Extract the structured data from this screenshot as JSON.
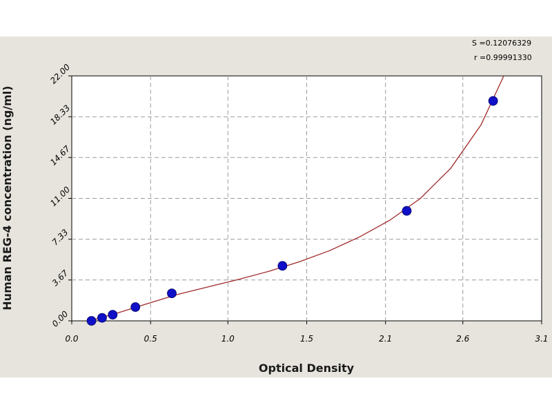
{
  "chart_data": {
    "type": "scatter",
    "title": "",
    "xlabel": "Optical Density",
    "ylabel": "Human REG-4 concentration (ng/ml)",
    "xlim": [
      0.0,
      3.1
    ],
    "ylim": [
      0.0,
      22.0
    ],
    "x_ticks": [
      "0.0",
      "0.5",
      "1.0",
      "1.5",
      "2.1",
      "2.6",
      "3.1"
    ],
    "x_tick_values": [
      0.0,
      0.52,
      1.03,
      1.55,
      2.07,
      2.58,
      3.1
    ],
    "y_ticks": [
      "0.00",
      "3.67",
      "7.33",
      "11.00",
      "14.67",
      "18.33",
      "22.00"
    ],
    "y_tick_values": [
      0.0,
      3.67,
      7.33,
      11.0,
      14.67,
      18.33,
      22.0
    ],
    "grid": true,
    "points": {
      "x": [
        0.13,
        0.2,
        0.27,
        0.42,
        0.66,
        1.39,
        2.21,
        2.78
      ],
      "y": [
        0.0,
        0.27,
        0.55,
        1.24,
        2.47,
        4.94,
        9.88,
        19.75
      ]
    },
    "fit_curve": {
      "x": [
        0.12,
        0.3,
        0.5,
        0.7,
        0.9,
        1.1,
        1.3,
        1.5,
        1.7,
        1.9,
        2.1,
        2.3,
        2.5,
        2.7,
        2.85
      ],
      "y": [
        0.0,
        0.7,
        1.55,
        2.38,
        3.05,
        3.72,
        4.45,
        5.3,
        6.3,
        7.55,
        9.05,
        11.0,
        13.7,
        17.6,
        22.0
      ]
    },
    "stats": {
      "s": "S =0.12076329",
      "r": "r =0.99991330"
    },
    "colors": {
      "point": "#1010c8",
      "curve": "#a02828",
      "grid": "#9a9a9a",
      "panel": "#e6e4dc"
    }
  }
}
